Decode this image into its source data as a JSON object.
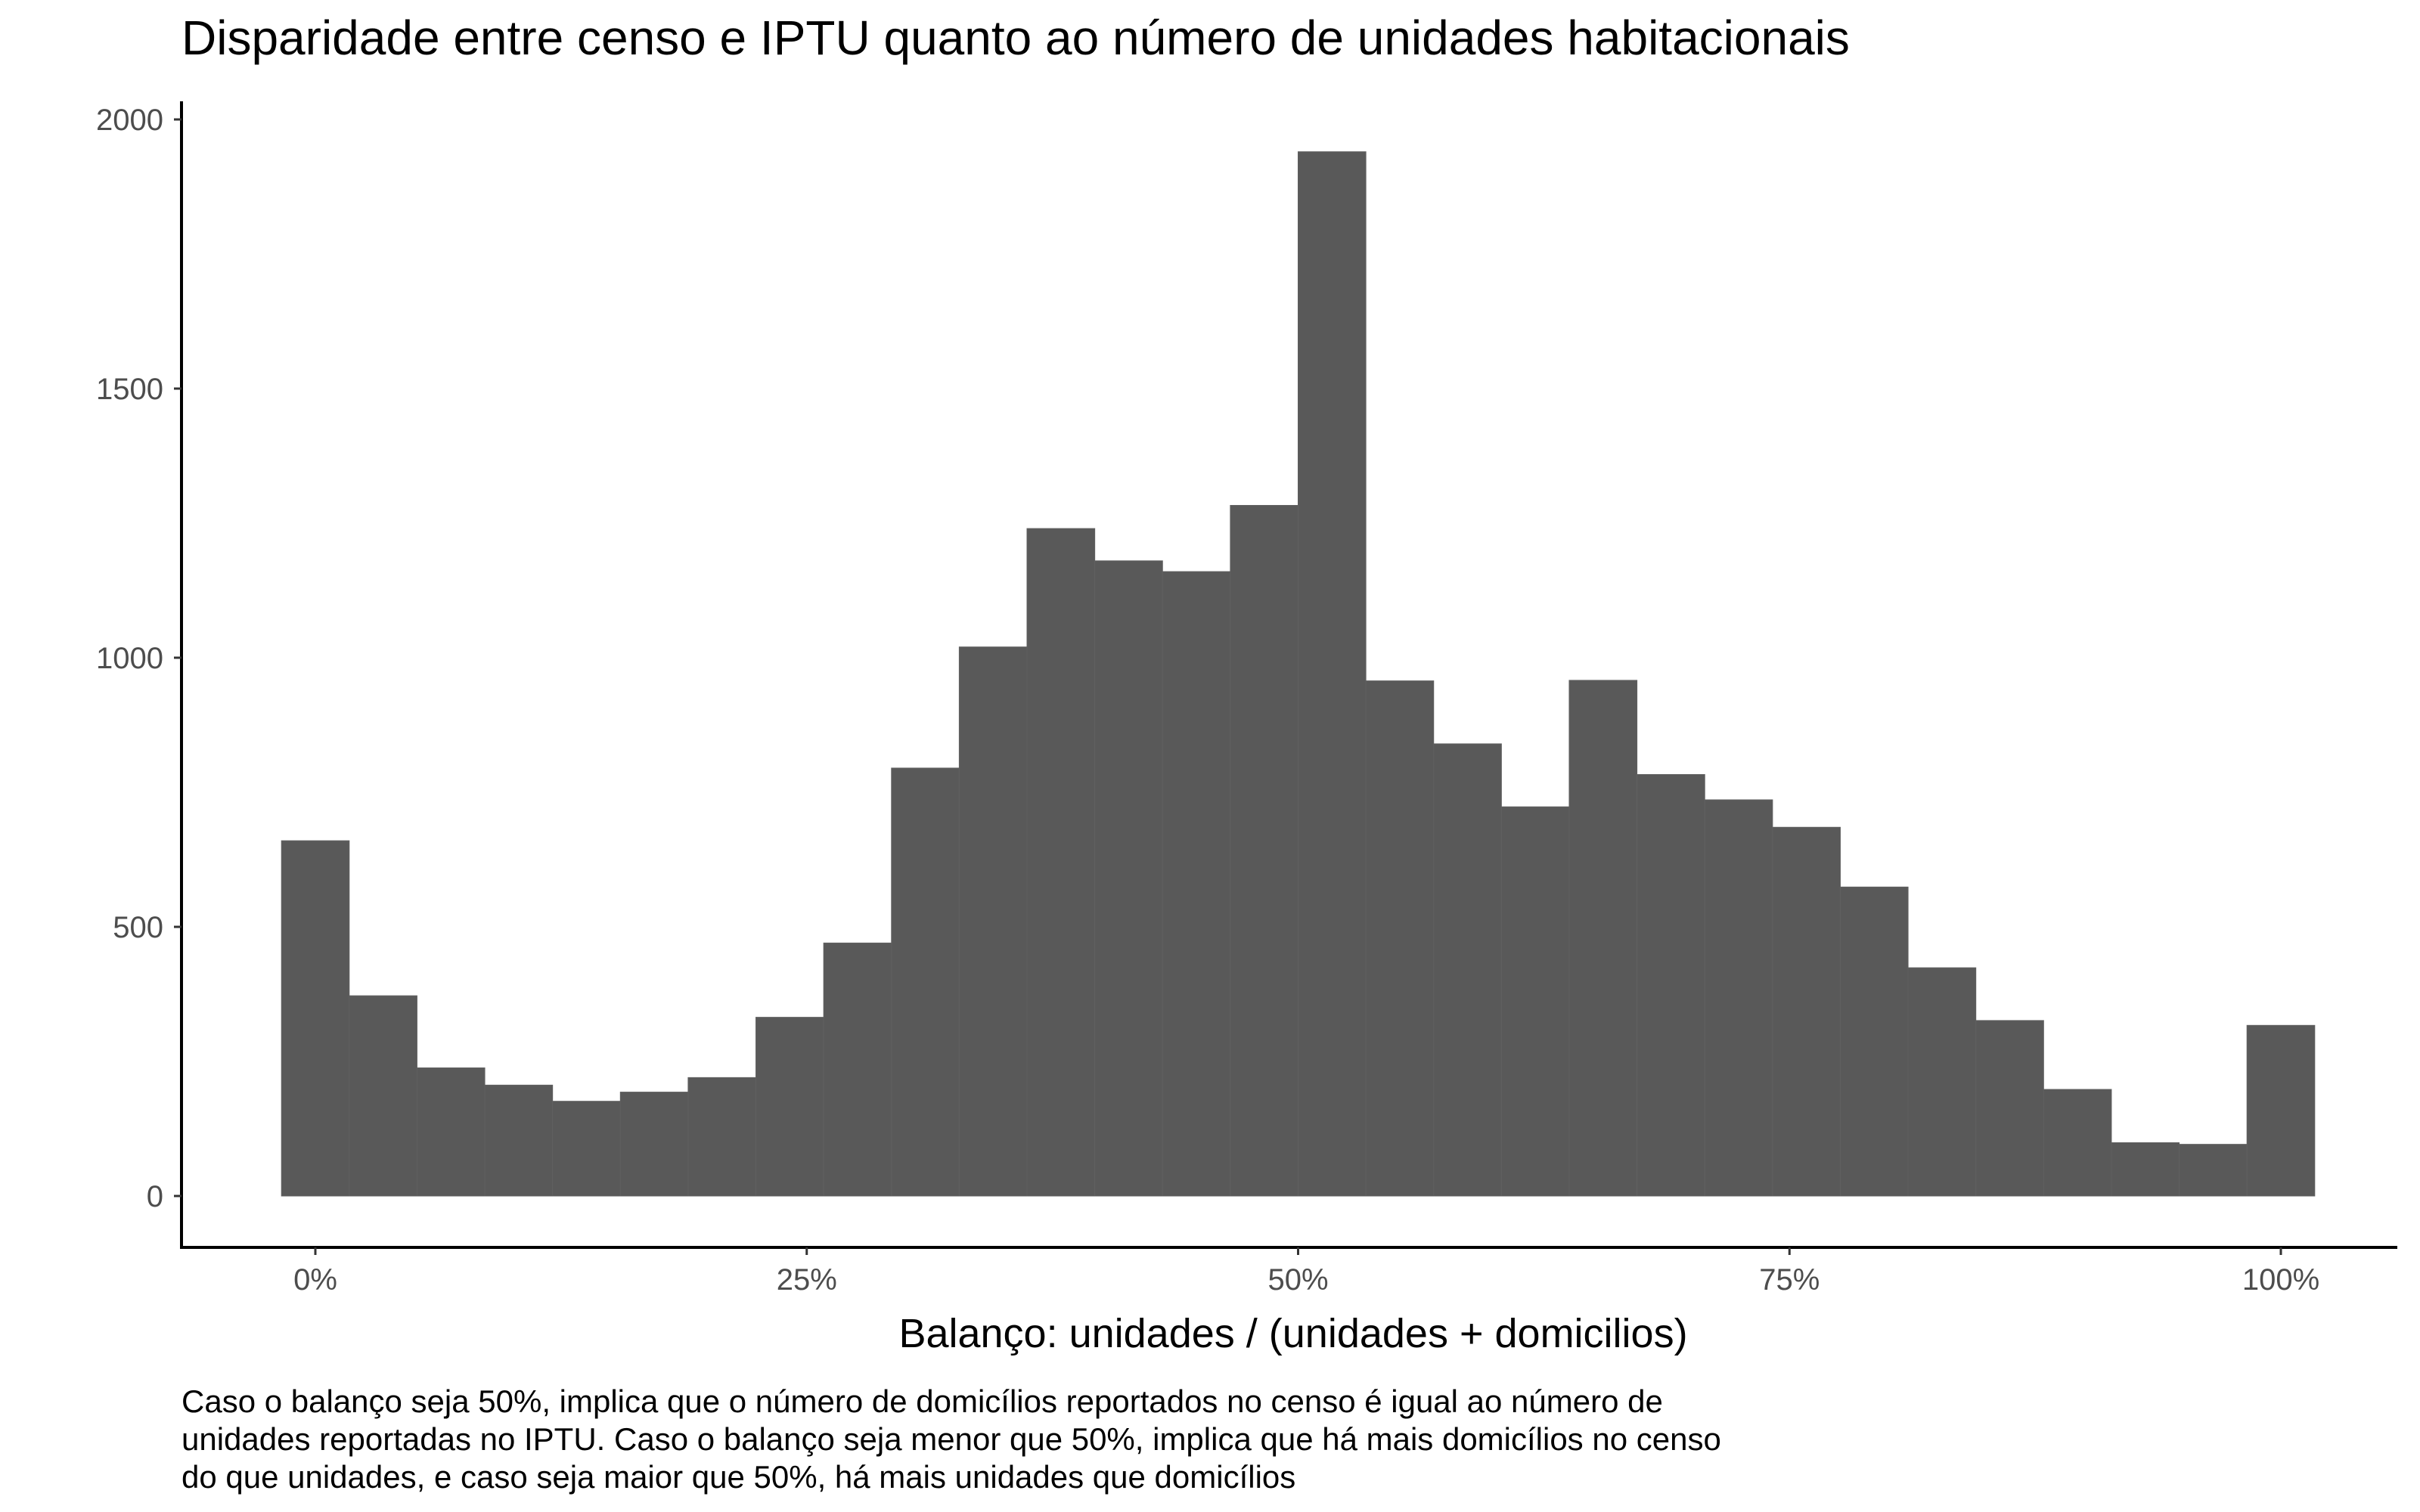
{
  "chart_data": {
    "type": "bar",
    "subtype": "histogram",
    "title": "Disparidade entre censo e IPTU quanto ao número de unidades habitacionais",
    "xlabel": "Balanço: unidades / (unidades + domicilios)",
    "ylabel": "",
    "caption_lines": [
      "Caso o balanço seja 50%, implica que o número de domicílios reportados no censo é igual ao número de",
      "unidades reportadas no IPTU. Caso o balanço seja menor que 50%, implica que há mais domicílios no censo",
      "do que unidades, e caso seja maior que 50%, há mais unidades que domicílios"
    ],
    "bins": 30,
    "bin_width": 0.03448,
    "x_range": [
      -0.01724,
      1.01724
    ],
    "x_ticks": [
      0,
      0.25,
      0.5,
      0.75,
      1.0
    ],
    "x_tick_labels": [
      "0%",
      "25%",
      "50%",
      "75%",
      "100%"
    ],
    "ylim": [
      0,
      2000
    ],
    "y_ticks": [
      0,
      500,
      1000,
      1500,
      2000
    ],
    "y_tick_labels": [
      "0",
      "500",
      "1000",
      "1500",
      "2000"
    ],
    "values": [
      660,
      372,
      238,
      206,
      176,
      193,
      220,
      332,
      470,
      795,
      1020,
      1240,
      1180,
      1160,
      1283,
      1940,
      957,
      840,
      723,
      958,
      783,
      736,
      685,
      574,
      424,
      326,
      198,
      99,
      96,
      317
    ],
    "bar_color": "#595959",
    "grid": false,
    "legend": "none"
  }
}
